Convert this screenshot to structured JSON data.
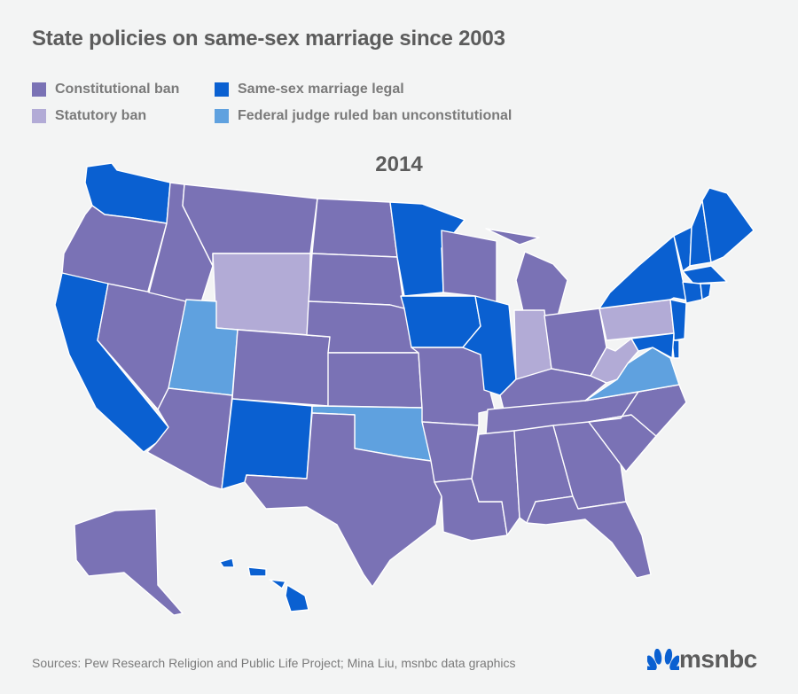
{
  "title": "State policies on same-sex marriage since 2003",
  "year": "2014",
  "colors": {
    "constitutional_ban": "#7a72b5",
    "statutory_ban": "#b2abd6",
    "legal": "#0a60d1",
    "judge_ruled": "#5fa1df",
    "border": "#ffffff"
  },
  "legend": [
    {
      "key": "constitutional_ban",
      "label": "Constitutional ban"
    },
    {
      "key": "legal",
      "label": "Same-sex marriage legal"
    },
    {
      "key": "statutory_ban",
      "label": "Statutory ban"
    },
    {
      "key": "judge_ruled",
      "label": "Federal judge ruled ban unconstitutional"
    }
  ],
  "states": {
    "WA": "legal",
    "OR": "constitutional_ban",
    "CA": "legal",
    "NV": "constitutional_ban",
    "ID": "constitutional_ban",
    "MT": "constitutional_ban",
    "WY": "statutory_ban",
    "UT": "judge_ruled",
    "AZ": "constitutional_ban",
    "CO": "constitutional_ban",
    "NM": "legal",
    "ND": "constitutional_ban",
    "SD": "constitutional_ban",
    "NE": "constitutional_ban",
    "KS": "constitutional_ban",
    "OK": "judge_ruled",
    "TX": "constitutional_ban",
    "MN": "legal",
    "IA": "legal",
    "MO": "constitutional_ban",
    "AR": "constitutional_ban",
    "LA": "constitutional_ban",
    "WI": "constitutional_ban",
    "IL": "legal",
    "MI": "constitutional_ban",
    "IN": "statutory_ban",
    "OH": "constitutional_ban",
    "KY": "constitutional_ban",
    "TN": "constitutional_ban",
    "MS": "constitutional_ban",
    "AL": "constitutional_ban",
    "GA": "constitutional_ban",
    "FL": "constitutional_ban",
    "SC": "constitutional_ban",
    "NC": "constitutional_ban",
    "VA": "judge_ruled",
    "WV": "statutory_ban",
    "PA": "statutory_ban",
    "NY": "legal",
    "VT": "legal",
    "NH": "legal",
    "ME": "legal",
    "MA": "legal",
    "CT": "legal",
    "RI": "legal",
    "NJ": "legal",
    "DE": "legal",
    "MD": "legal",
    "AK": "constitutional_ban",
    "HI": "legal"
  },
  "footer": {
    "sources": "Sources: Pew Research Religion and Public Life Project; Mina Liu, msnbc data graphics",
    "logo": "msnbc"
  }
}
